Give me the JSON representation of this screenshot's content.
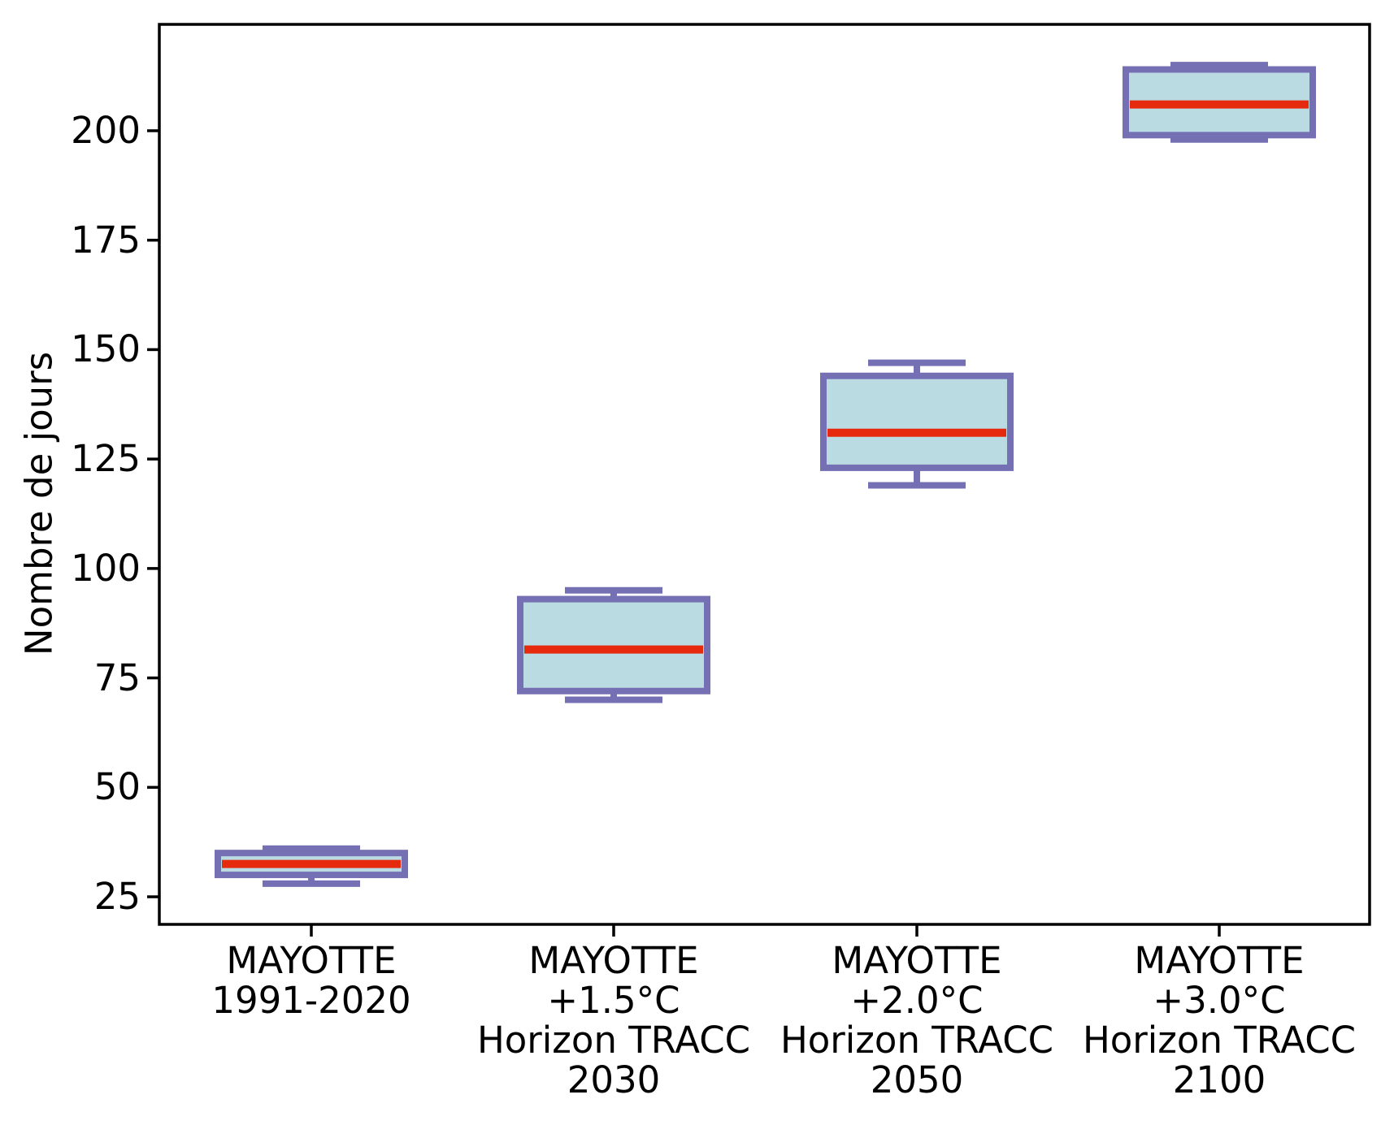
{
  "chart_data": {
    "type": "boxplot",
    "title": "",
    "xlabel": "",
    "ylabel": "Nombre de jours",
    "ylim": [
      18.7,
      224.3
    ],
    "grid": false,
    "legend": "none",
    "yticks": [
      25,
      50,
      75,
      100,
      125,
      150,
      175,
      200
    ],
    "categories": [
      {
        "lines": [
          "MAYOTTE",
          "1991-2020"
        ]
      },
      {
        "lines": [
          "MAYOTTE",
          "+1.5°C",
          "Horizon TRACC",
          "2030"
        ]
      },
      {
        "lines": [
          "MAYOTTE",
          "+2.0°C",
          "Horizon TRACC",
          "2050"
        ]
      },
      {
        "lines": [
          "MAYOTTE",
          "+3.0°C",
          "Horizon TRACC",
          "2100"
        ]
      }
    ],
    "series": [
      {
        "label": "MAYOTTE 1991-2020",
        "whislo": 28,
        "q1": 30,
        "med": 32.5,
        "q3": 35,
        "whishi": 36
      },
      {
        "label": "MAYOTTE +1.5°C Horizon TRACC 2030",
        "whislo": 70,
        "q1": 72,
        "med": 81.5,
        "q3": 93,
        "whishi": 95
      },
      {
        "label": "MAYOTTE +2.0°C Horizon TRACC 2050",
        "whislo": 119,
        "q1": 123,
        "med": 131,
        "q3": 144,
        "whishi": 147
      },
      {
        "label": "MAYOTTE +3.0°C Horizon TRACC 2100",
        "whislo": 198,
        "q1": 199,
        "med": 206,
        "q3": 214,
        "whishi": 215
      }
    ],
    "colors": {
      "background": "#ffffff",
      "axis": "#000000",
      "text": "#000000",
      "box_fill": "#badbe2",
      "box_border": "#7570b3",
      "median": "#e62a0e"
    }
  }
}
